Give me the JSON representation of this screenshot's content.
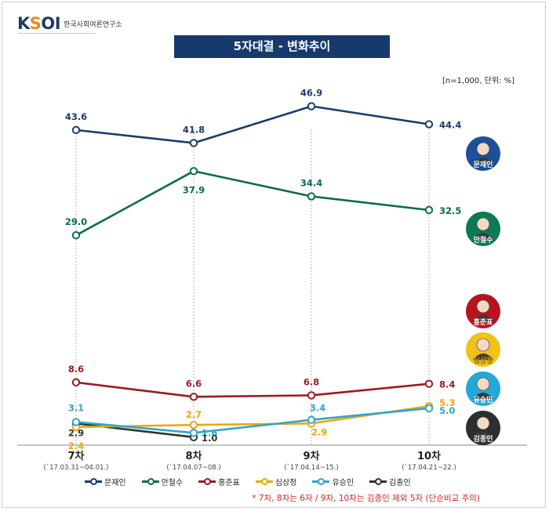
{
  "header": {
    "logo_text": "KSOI",
    "logo_sub": "한국사회여론연구소"
  },
  "title": "5자대결 - 변화추이",
  "unit_note": "[n=1,000, 단위: %]",
  "footnote": "* 7차, 8차는 6자 / 9차, 10차는 김종인 제외 5자 (단순비교 주의)",
  "chart_data": {
    "type": "line",
    "categories": [
      "7차",
      "8차",
      "9차",
      "10차"
    ],
    "category_dates": [
      "(`17.03.31~04.01.)",
      "(`17.04.07~08.)",
      "(`17.04.14~15.)",
      "(`17.04.21~22.)"
    ],
    "title": "5자대결 - 변화추이",
    "ylim": [
      0,
      50
    ],
    "grid": "vertical dotted",
    "legend": "bottom",
    "series": [
      {
        "name": "문재인",
        "color": "#1d3c6c",
        "values": [
          43.6,
          41.8,
          46.9,
          44.4
        ],
        "labels": [
          "43.6",
          "41.8",
          "46.9",
          "44.4"
        ]
      },
      {
        "name": "안철수",
        "color": "#0c6b4c",
        "values": [
          29.0,
          37.9,
          34.4,
          32.5
        ],
        "labels": [
          "29.0",
          "37.9",
          "34.4",
          "32.5"
        ]
      },
      {
        "name": "홍준표",
        "color": "#9b1b22",
        "values": [
          8.6,
          6.6,
          6.8,
          8.4
        ],
        "labels": [
          "8.6",
          "6.6",
          "6.8",
          "8.4"
        ]
      },
      {
        "name": "심상정",
        "color": "#e8a812",
        "values": [
          2.4,
          2.7,
          2.9,
          5.3
        ],
        "labels": [
          "2.4",
          "2.7",
          "2.9",
          "5.3"
        ]
      },
      {
        "name": "유승민",
        "color": "#2fa7c8",
        "values": [
          3.1,
          1.6,
          3.4,
          5.0
        ],
        "labels": [
          "3.1",
          "1.6",
          "3.4",
          "5.0"
        ]
      },
      {
        "name": "김종인",
        "color": "#333333",
        "values": [
          2.9,
          1.0,
          null,
          null
        ],
        "labels": [
          "2.9",
          "1.0",
          "",
          ""
        ]
      }
    ],
    "candidate_badges": [
      {
        "name": "문재인",
        "color": "#1d4f9b"
      },
      {
        "name": "안철수",
        "color": "#0c7a55"
      },
      {
        "name": "홍준표",
        "color": "#b8141e"
      },
      {
        "name": "심상정",
        "color": "#f2c21a"
      },
      {
        "name": "유승민",
        "color": "#23a9d8"
      },
      {
        "name": "김종인",
        "color": "#2e2e2e"
      }
    ]
  }
}
